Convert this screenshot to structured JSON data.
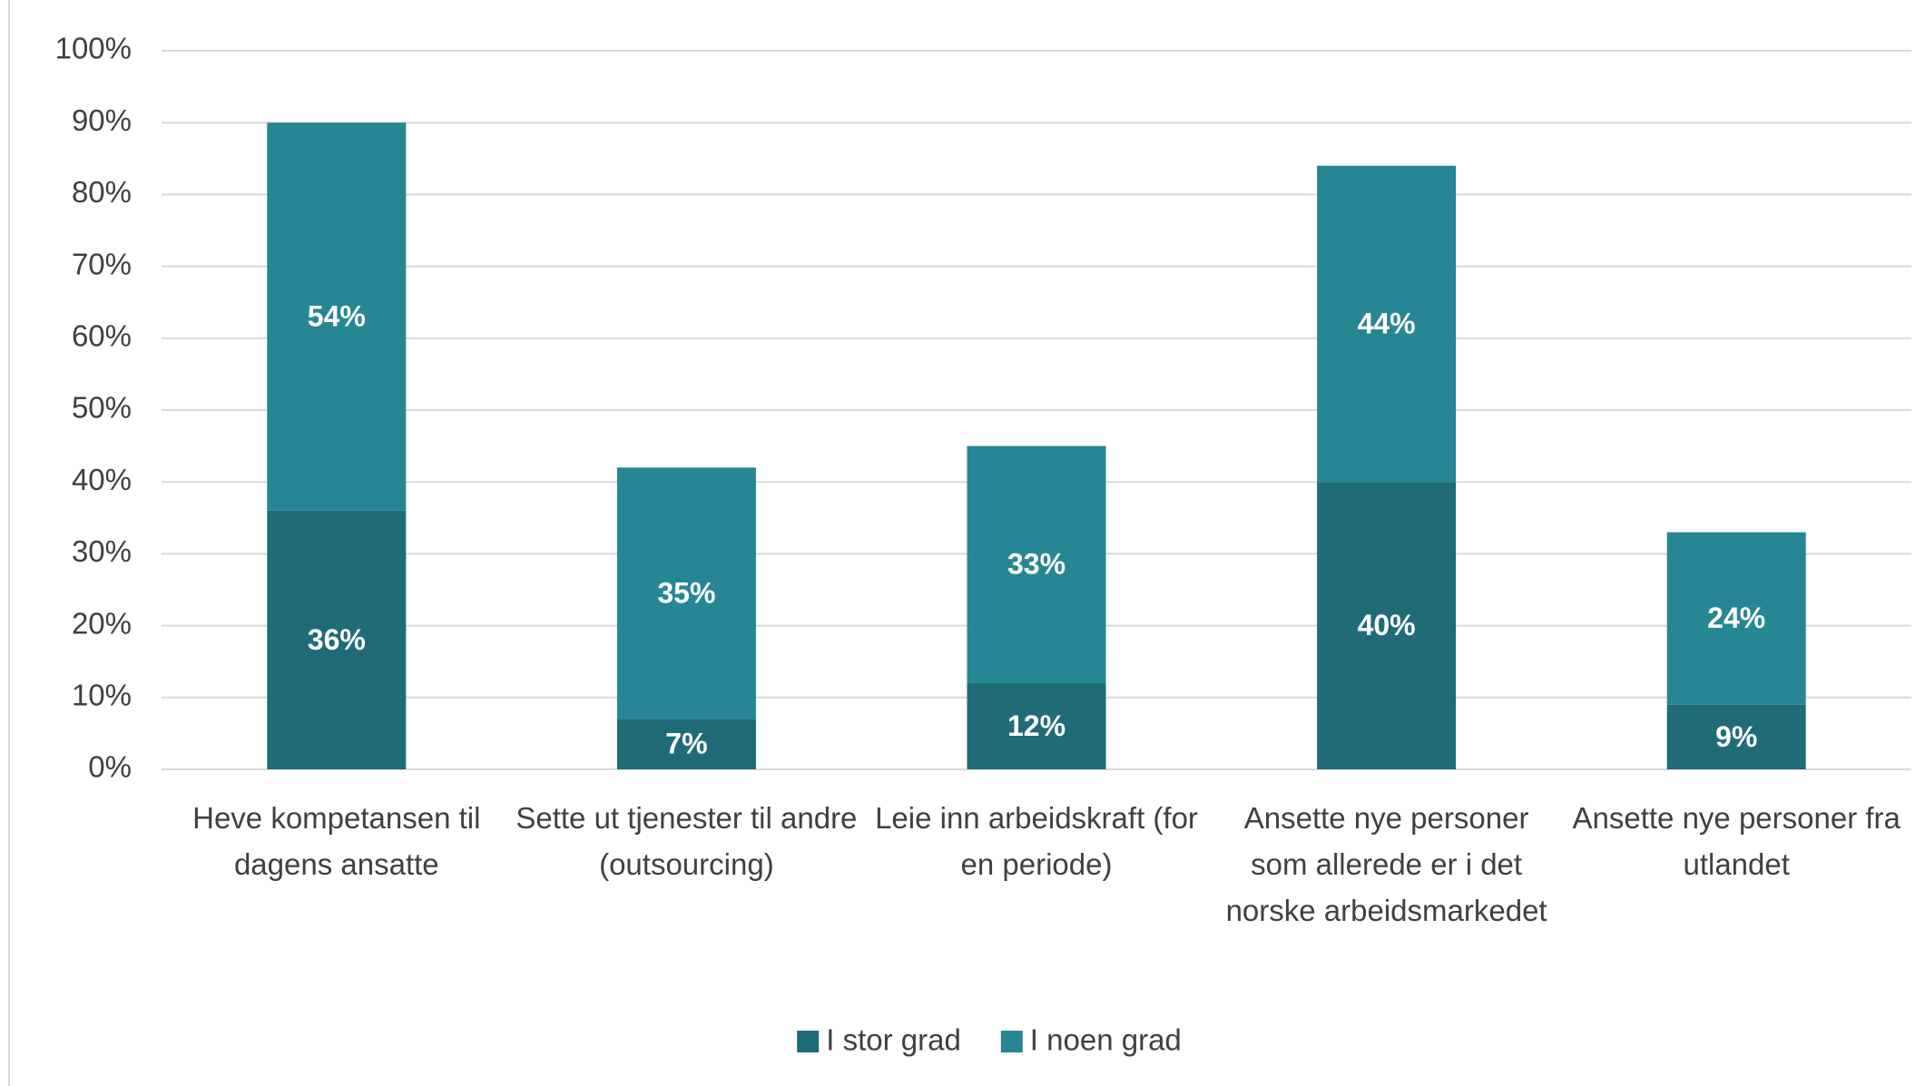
{
  "chart_data": {
    "type": "bar",
    "stacked": true,
    "categories": [
      "Heve kompetansen til dagens ansatte",
      "Sette ut tjenester til andre (outsourcing)",
      "Leie inn arbeidskraft (for en periode)",
      "Ansette nye personer som allerede er i det norske arbeidsmarkedet",
      "Ansette nye personer fra utlandet"
    ],
    "series": [
      {
        "name": "I stor grad",
        "color": "#1f6b78",
        "values": [
          36,
          7,
          12,
          40,
          9
        ],
        "value_labels": [
          "36%",
          "7%",
          "12%",
          "40%",
          "9%"
        ]
      },
      {
        "name": "I noen grad",
        "color": "#268693",
        "values": [
          54,
          35,
          33,
          44,
          24
        ],
        "value_labels": [
          "54%",
          "35%",
          "33%",
          "44%",
          "24%"
        ]
      }
    ],
    "ylim": [
      0,
      100
    ],
    "yticks": [
      {
        "value": 0,
        "label": "0%"
      },
      {
        "value": 10,
        "label": "10%"
      },
      {
        "value": 20,
        "label": "20%"
      },
      {
        "value": 30,
        "label": "30%"
      },
      {
        "value": 40,
        "label": "40%"
      },
      {
        "value": 50,
        "label": "50%"
      },
      {
        "value": 60,
        "label": "60%"
      },
      {
        "value": 70,
        "label": "70%"
      },
      {
        "value": 80,
        "label": "80%"
      },
      {
        "value": 90,
        "label": "90%"
      },
      {
        "value": 100,
        "label": "100%"
      }
    ],
    "grid": true,
    "legend": "bottom"
  }
}
